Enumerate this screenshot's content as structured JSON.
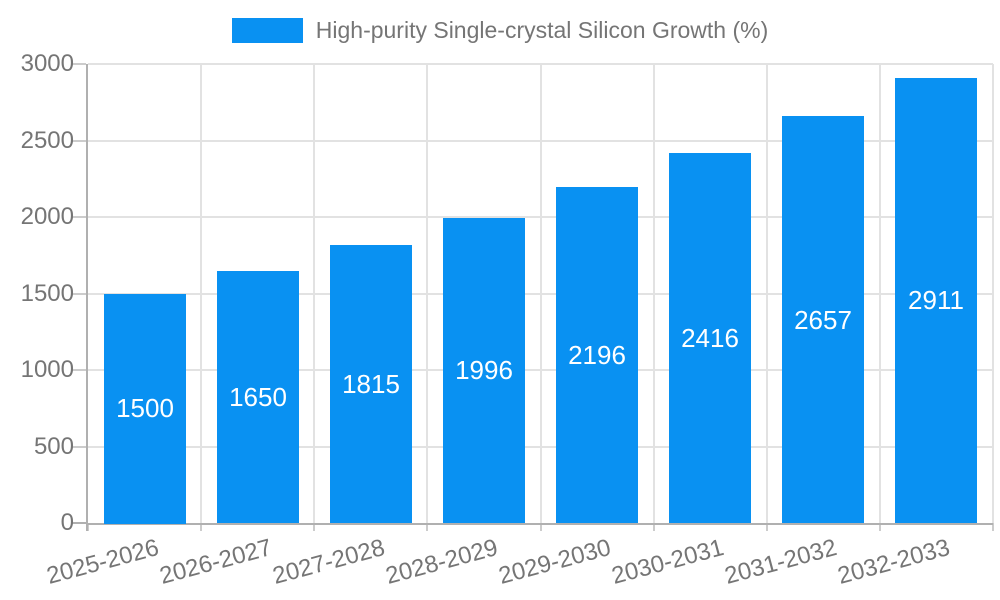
{
  "chart_data": {
    "type": "bar",
    "title": "",
    "legend_label": "High-purity Single-crystal Silicon Growth (%)",
    "legend_position": "top",
    "categories": [
      "2025-2026",
      "2026-2027",
      "2027-2028",
      "2028-2029",
      "2029-2030",
      "2030-2031",
      "2031-2032",
      "2032-2033"
    ],
    "values": [
      1500,
      1650,
      1815,
      1996,
      2196,
      2416,
      2657,
      2911
    ],
    "xlabel": "",
    "ylabel": "",
    "ylim": [
      0,
      3000
    ],
    "yticks": [
      0,
      500,
      1000,
      1500,
      2000,
      2500,
      3000
    ],
    "grid": true,
    "x_label_rotation_deg": -15,
    "colors": {
      "bar": "#0991f2",
      "value_label": "#ffffff",
      "tick_label": "#757575",
      "gridline": "#e2e2e2",
      "axis": "#b0b0b0",
      "tick_mark": "#cccccc"
    }
  }
}
